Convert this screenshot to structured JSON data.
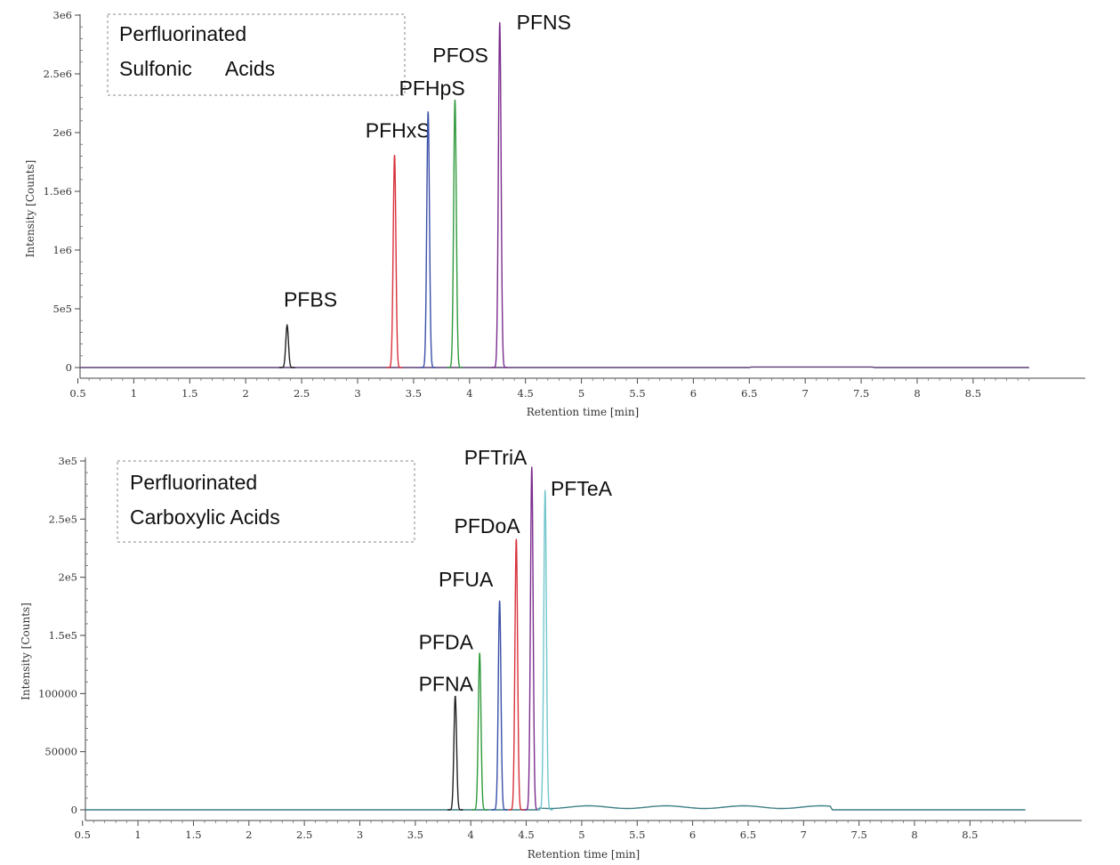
{
  "chart_data": [
    {
      "type": "line",
      "title": "",
      "legend_box_lines": [
        "Perfluorinated",
        "Sulfonic      Acids"
      ],
      "xlabel": "Retention time [min]",
      "ylabel": "Intensity [Counts]",
      "xlim": [
        0,
        9
      ],
      "ylim": [
        0,
        3000000
      ],
      "x_ticks": [
        0.5,
        1,
        1.5,
        2,
        2.5,
        3,
        3.5,
        4,
        4.5,
        5,
        5.5,
        6,
        6.5,
        7,
        7.5,
        8,
        8.5
      ],
      "x_tick_labels": [
        "0.5",
        "1",
        "1.5",
        "2",
        "2.5",
        "3",
        "3.5",
        "4",
        "4.5",
        "5",
        "5.5",
        "6",
        "6.5",
        "7",
        "7.5",
        "8",
        "8.5"
      ],
      "y_ticks": [
        0,
        500000,
        1000000,
        1500000,
        2000000,
        2500000,
        3000000
      ],
      "y_tick_labels": [
        "0",
        "5e5",
        "1e6",
        "1.5e6",
        "2e6",
        "2.5e6",
        "3e6"
      ],
      "series": [
        {
          "name": "PFBS",
          "color": "#222222",
          "rt": 2.37,
          "height": 360000,
          "label_x": 2.34,
          "label_y": 520000
        },
        {
          "name": "PFHxS",
          "color": "#d9323c",
          "rt": 3.33,
          "height": 1810000,
          "label_x": 3.07,
          "label_y": 1960000
        },
        {
          "name": "PFHpS",
          "color": "#3a4fa8",
          "rt": 3.63,
          "height": 2180000,
          "label_x": 3.37,
          "label_y": 2320000
        },
        {
          "name": "PFOS",
          "color": "#2f9a3c",
          "rt": 3.87,
          "height": 2280000,
          "label_x": 3.67,
          "label_y": 2600000
        },
        {
          "name": "PFNS",
          "color": "#7b2d8e",
          "rt": 4.27,
          "height": 2940000,
          "label_x": 4.42,
          "label_y": 2880000
        }
      ]
    },
    {
      "type": "line",
      "title": "",
      "legend_box_lines": [
        "Perfluorinated",
        "Carboxylic Acids"
      ],
      "xlabel": "Retention time [min]",
      "ylabel": "Intensity [Counts]",
      "xlim": [
        0,
        9
      ],
      "ylim": [
        0,
        300000
      ],
      "x_ticks": [
        0.5,
        1,
        1.5,
        2,
        2.5,
        3,
        3.5,
        4,
        4.5,
        5,
        5.5,
        6,
        6.5,
        7,
        7.5,
        8,
        8.5
      ],
      "x_tick_labels": [
        "0.5",
        "1",
        "1.5",
        "2",
        "2.5",
        "3",
        "3.5",
        "4",
        "4.5",
        "5",
        "5.5",
        "6",
        "6.5",
        "7",
        "7.5",
        "8",
        "8.5"
      ],
      "y_ticks": [
        0,
        50000,
        100000,
        150000,
        200000,
        250000,
        300000
      ],
      "y_tick_labels": [
        "0",
        "50000",
        "100000",
        "1.5e5",
        "2e5",
        "2.5e5",
        "3e5"
      ],
      "series": [
        {
          "name": "PFNA",
          "color": "#222222",
          "rt": 3.86,
          "height": 98000,
          "label_x": 3.53,
          "label_y": 102000
        },
        {
          "name": "PFDA",
          "color": "#2f9a3c",
          "rt": 4.08,
          "height": 135000,
          "label_x": 3.53,
          "label_y": 138000
        },
        {
          "name": "PFUA",
          "color": "#3a4fa8",
          "rt": 4.26,
          "height": 180000,
          "label_x": 3.71,
          "label_y": 192000
        },
        {
          "name": "PFDoA",
          "color": "#d9323c",
          "rt": 4.41,
          "height": 233000,
          "label_x": 3.85,
          "label_y": 238000
        },
        {
          "name": "PFTriA",
          "color": "#7b2d8e",
          "rt": 4.55,
          "height": 295000,
          "label_x": 3.94,
          "label_y": 297000
        },
        {
          "name": "PFTeA",
          "color": "#72c6cc",
          "rt": 4.67,
          "height": 275000,
          "label_x": 4.72,
          "label_y": 270000
        }
      ]
    }
  ]
}
